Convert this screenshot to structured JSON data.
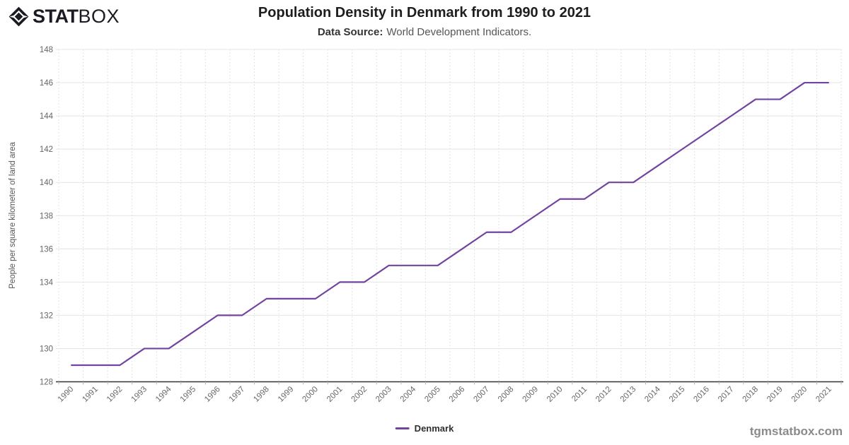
{
  "brand": {
    "icon": "statbox-diamond-icon",
    "text_bold": "STAT",
    "text_light": "BOX"
  },
  "header": {
    "title": "Population Density in Denmark from 1990 to 2021",
    "source_label": "Data Source:",
    "source_value": "World Development Indicators."
  },
  "watermark": "tgmstatbox.com",
  "colors": {
    "accent_line": "#7244a0",
    "axis_line": "#333333",
    "tick_label": "#666666",
    "grid_solid": "#e4e4e4",
    "grid_dotted": "#d9d9d9",
    "axis_title": "#555555"
  },
  "chart_data": {
    "type": "line",
    "title": "Population Density in Denmark from 1990 to 2021",
    "xlabel": "",
    "ylabel": "People per square kilometer of land area",
    "ylim": [
      128,
      148
    ],
    "ytick_step": 2,
    "grid": true,
    "legend_position": "bottom",
    "categories": [
      "1990",
      "1991",
      "1992",
      "1993",
      "1994",
      "1995",
      "1996",
      "1997",
      "1998",
      "1999",
      "2000",
      "2001",
      "2002",
      "2003",
      "2004",
      "2005",
      "2006",
      "2007",
      "2008",
      "2009",
      "2010",
      "2011",
      "2012",
      "2013",
      "2014",
      "2015",
      "2016",
      "2017",
      "2018",
      "2019",
      "2020",
      "2021"
    ],
    "series": [
      {
        "name": "Denmark",
        "color": "#7244a0",
        "values": [
          129,
          129,
          129,
          130,
          130,
          131,
          132,
          132,
          133,
          133,
          133,
          134,
          134,
          135,
          135,
          135,
          136,
          137,
          137,
          138,
          139,
          139,
          140,
          140,
          141,
          142,
          143,
          144,
          145,
          145,
          146,
          146
        ]
      }
    ]
  }
}
